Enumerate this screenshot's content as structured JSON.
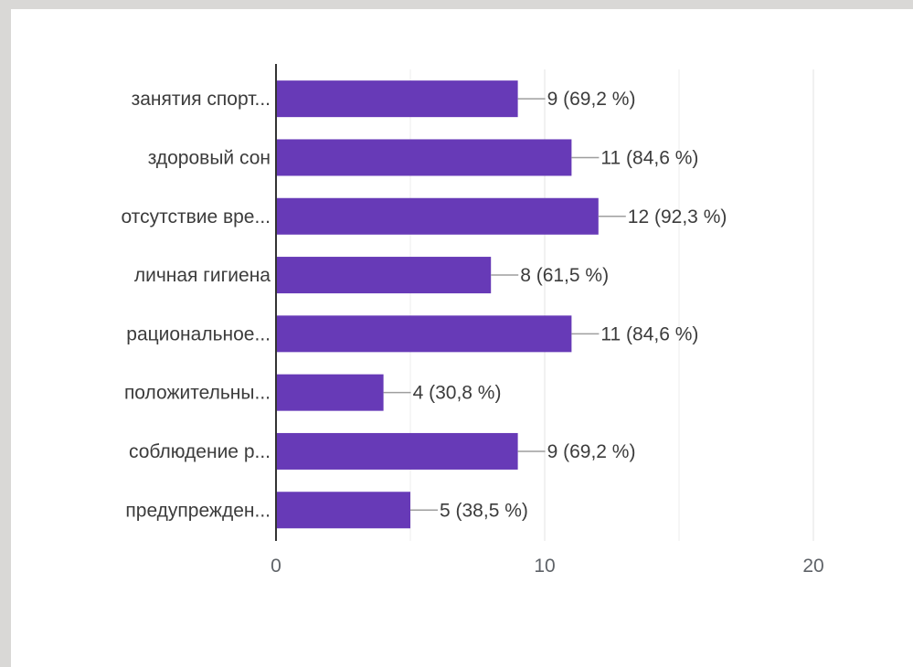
{
  "chart_data": {
    "type": "bar",
    "orientation": "horizontal",
    "categories": [
      "занятия спорт...",
      "здоровый сон",
      "отсутствие вре...",
      "личная гигиена",
      "рациональное...",
      "положительны...",
      "соблюдение р...",
      "предупрежден..."
    ],
    "values": [
      9,
      11,
      12,
      8,
      11,
      4,
      9,
      5
    ],
    "data_labels": [
      "9 (69,2 %)",
      "11 (84,6 %)",
      "12 (92,3 %)",
      "8 (61,5 %)",
      "11 (84,6 %)",
      "4 (30,8 %)",
      "9 (69,2 %)",
      "5 (38,5 %)"
    ],
    "xlim": [
      0,
      20
    ],
    "x_ticks": [
      "0",
      "10",
      "20"
    ],
    "grid": true,
    "bar_color": "#673ab7"
  }
}
